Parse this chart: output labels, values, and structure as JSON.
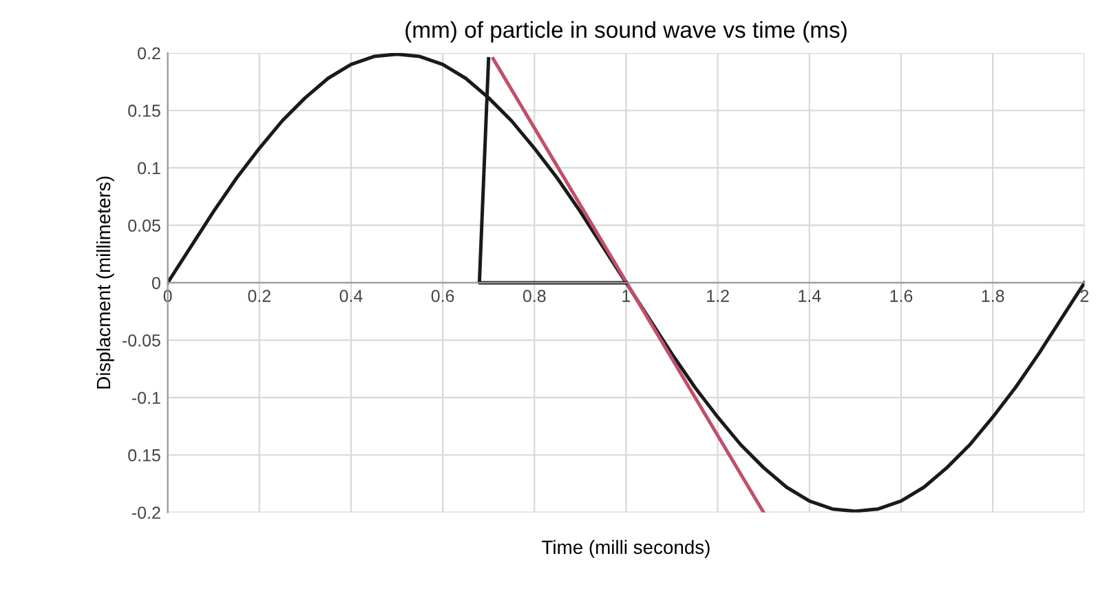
{
  "chart_data": {
    "type": "line",
    "title": "(mm) of particle in sound wave vs time (ms)",
    "xlabel": "Time (milli seconds)",
    "ylabel": "Displacment (millimeters)",
    "series": [
      {
        "color": "#1a1a1a",
        "x": [
          0,
          0.05,
          0.1,
          0.15,
          0.2,
          0.25,
          0.3,
          0.35,
          0.4,
          0.45,
          0.5,
          0.55,
          0.6,
          0.65,
          0.7,
          0.75,
          0.8,
          0.85,
          0.9,
          0.95,
          1,
          1.05,
          1.1,
          1.15,
          1.2,
          1.25,
          1.3,
          1.35,
          1.4,
          1.45,
          1.5,
          1.55,
          1.6,
          1.65,
          1.7,
          1.75,
          1.8,
          1.85,
          1.9,
          1.95,
          2
        ],
        "values": [
          0,
          0.031,
          0.062,
          0.091,
          0.117,
          0.141,
          0.161,
          0.178,
          0.19,
          0.197,
          0.199,
          0.197,
          0.19,
          0.178,
          0.161,
          0.141,
          0.117,
          0.091,
          0.062,
          0.031,
          0,
          -0.031,
          -0.062,
          -0.091,
          -0.117,
          -0.141,
          -0.161,
          -0.178,
          -0.19,
          -0.197,
          -0.199,
          -0.197,
          -0.19,
          -0.178,
          -0.161,
          -0.141,
          -0.117,
          -0.091,
          -0.062,
          -0.031,
          0
        ]
      },
      {
        "color": "#c0506a",
        "x": [
          0.71,
          1.3
        ],
        "values": [
          0.195,
          -0.2
        ]
      },
      {
        "color": "#1a1a1a",
        "x": [
          0.7,
          0.68,
          1.0
        ],
        "values": [
          0.195,
          0,
          0
        ]
      }
    ],
    "xlim": [
      0,
      2
    ],
    "ylim": [
      -0.2,
      0.2
    ],
    "xticks": [
      0,
      0.2,
      0.4,
      0.6,
      0.8,
      1,
      1.2,
      1.4,
      1.6,
      1.8,
      2
    ],
    "yticks": [
      {
        "value": -0.2,
        "label": "-0.2"
      },
      {
        "value": -0.15,
        "label": "0.15"
      },
      {
        "value": -0.1,
        "label": "-0.1"
      },
      {
        "value": -0.05,
        "label": "-0.05"
      },
      0,
      0.05,
      0.1,
      0.15,
      0.2
    ],
    "grid": true,
    "marker": "none",
    "line_style": "solid"
  }
}
